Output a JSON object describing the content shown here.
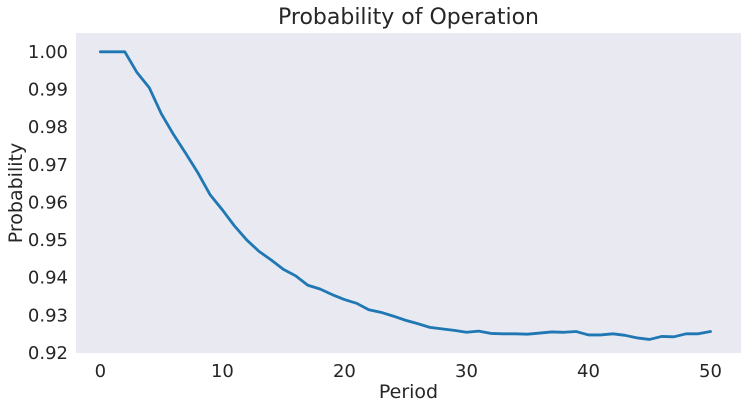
{
  "chart_data": {
    "type": "line",
    "title": "Probability of Operation",
    "xlabel": "Period",
    "ylabel": "Probability",
    "xlim": [
      -2,
      52.5
    ],
    "ylim": [
      0.92,
      1.005
    ],
    "xticks": [
      0,
      10,
      20,
      30,
      40,
      50
    ],
    "xtick_labels": [
      "0",
      "10",
      "20",
      "30",
      "40",
      "50"
    ],
    "yticks": [
      0.92,
      0.93,
      0.94,
      0.95,
      0.96,
      0.97,
      0.98,
      0.99,
      1.0
    ],
    "ytick_labels": [
      "0.92",
      "0.93",
      "0.94",
      "0.95",
      "0.96",
      "0.97",
      "0.98",
      "0.99",
      "1.00"
    ],
    "grid": false,
    "background": "#e9e9f1",
    "series": [
      {
        "color": "#1f77b4",
        "x": [
          0,
          1,
          2,
          3,
          4,
          5,
          6,
          7,
          8,
          9,
          10,
          11,
          12,
          13,
          14,
          15,
          16,
          17,
          18,
          19,
          20,
          21,
          22,
          23,
          24,
          25,
          26,
          27,
          28,
          29,
          30,
          31,
          32,
          33,
          34,
          35,
          36,
          37,
          38,
          39,
          40,
          41,
          42,
          43,
          44,
          45,
          46,
          47,
          48,
          49,
          50
        ],
        "values": [
          1.0,
          1.0,
          1.0,
          0.9945,
          0.9905,
          0.9835,
          0.978,
          0.973,
          0.9678,
          0.962,
          0.958,
          0.9537,
          0.95,
          0.947,
          0.9447,
          0.9422,
          0.9405,
          0.938,
          0.937,
          0.9355,
          0.9342,
          0.9332,
          0.9315,
          0.9308,
          0.9298,
          0.9287,
          0.9278,
          0.9268,
          0.9264,
          0.926,
          0.9255,
          0.9258,
          0.9252,
          0.9251,
          0.9251,
          0.925,
          0.9253,
          0.9256,
          0.9255,
          0.9257,
          0.9248,
          0.9248,
          0.9251,
          0.9247,
          0.924,
          0.9236,
          0.9244,
          0.9243,
          0.9251,
          0.9251,
          0.9257
        ]
      }
    ]
  }
}
